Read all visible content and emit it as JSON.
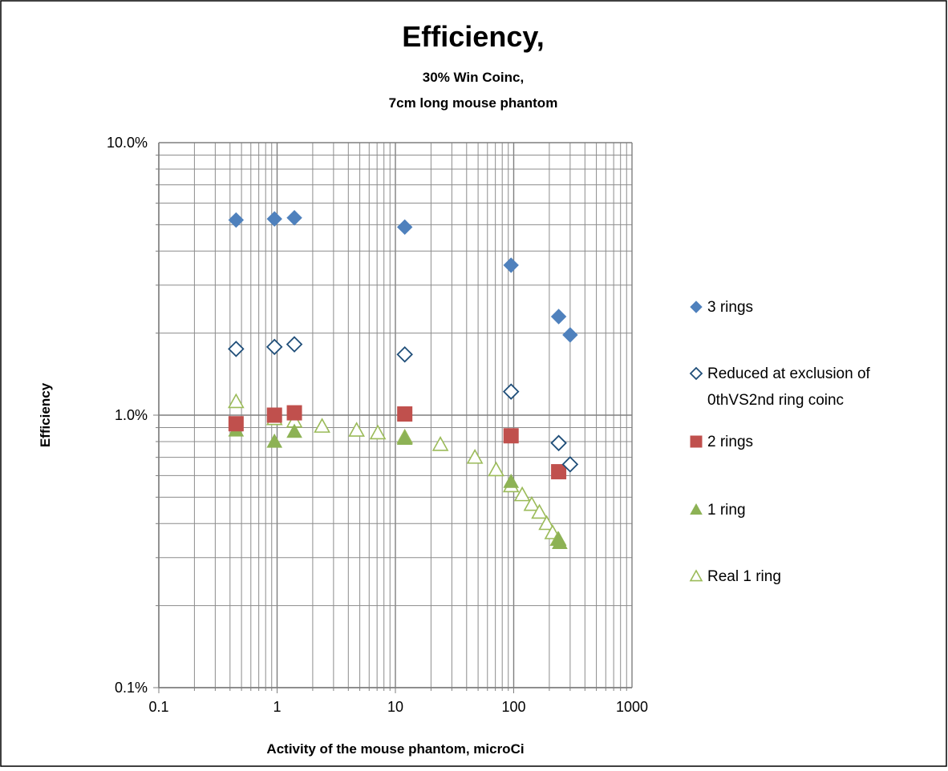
{
  "chart_data": {
    "type": "scatter",
    "title": "Efficiency,",
    "subtitle_lines": [
      "30% Win Coinc,",
      "7cm long mouse phantom"
    ],
    "xlabel": "Activity of the mouse phantom, microCi",
    "ylabel": "Efficiency",
    "x_scale": "log",
    "y_scale": "log",
    "xlim": [
      0.1,
      1000
    ],
    "ylim": [
      0.001,
      0.1
    ],
    "x_tick_labels": [
      "0.1",
      "1",
      "10",
      "100",
      "1000"
    ],
    "y_tick_labels": [
      "0.1%",
      "1.0%",
      "10.0%"
    ],
    "grid": true,
    "legend_position": "right",
    "series": [
      {
        "name": "3 rings",
        "marker": "diamond-filled",
        "color": "#4f81bd",
        "points": [
          [
            0.45,
            0.052
          ],
          [
            0.95,
            0.0525
          ],
          [
            1.4,
            0.053
          ],
          [
            12,
            0.049
          ],
          [
            95,
            0.0355
          ],
          [
            240,
            0.023
          ],
          [
            300,
            0.0197
          ]
        ]
      },
      {
        "name": "Reduced at exclusion of 0thVS2nd ring coinc",
        "legend_lines": [
          "Reduced at exclusion of",
          "0thVS2nd ring coinc"
        ],
        "marker": "diamond-open",
        "color": "#1f4e79",
        "points": [
          [
            0.45,
            0.0175
          ],
          [
            0.95,
            0.0178
          ],
          [
            1.4,
            0.0182
          ],
          [
            12,
            0.0167
          ],
          [
            95,
            0.0122
          ],
          [
            240,
            0.0079
          ],
          [
            300,
            0.0066
          ]
        ]
      },
      {
        "name": "2 rings",
        "marker": "square-filled",
        "color": "#c0504d",
        "points": [
          [
            0.45,
            0.0093
          ],
          [
            0.95,
            0.01
          ],
          [
            1.4,
            0.0102
          ],
          [
            12,
            0.0101
          ],
          [
            95,
            0.0084
          ],
          [
            240,
            0.0062
          ]
        ]
      },
      {
        "name": "1 ring",
        "marker": "triangle-filled",
        "color": "#8db255",
        "points": [
          [
            0.45,
            0.0088
          ],
          [
            0.95,
            0.008
          ],
          [
            1.4,
            0.0087
          ],
          [
            12,
            0.0082
          ],
          [
            95,
            0.0057
          ],
          [
            240,
            0.0035
          ],
          [
            245,
            0.0034
          ]
        ]
      },
      {
        "name": "Real 1 ring",
        "marker": "triangle-open",
        "color": "#9bbb59",
        "points": [
          [
            0.45,
            0.0112
          ],
          [
            0.95,
            0.0097
          ],
          [
            1.4,
            0.0095
          ],
          [
            2.4,
            0.0091
          ],
          [
            4.7,
            0.0088
          ],
          [
            7.1,
            0.0086
          ],
          [
            12,
            0.0083
          ],
          [
            24,
            0.0078
          ],
          [
            47,
            0.007
          ],
          [
            71,
            0.0063
          ],
          [
            95,
            0.0055
          ],
          [
            118,
            0.0051
          ],
          [
            142,
            0.0047
          ],
          [
            165,
            0.0044
          ],
          [
            190,
            0.004
          ],
          [
            213,
            0.0037
          ],
          [
            237,
            0.0035
          ]
        ]
      }
    ]
  }
}
